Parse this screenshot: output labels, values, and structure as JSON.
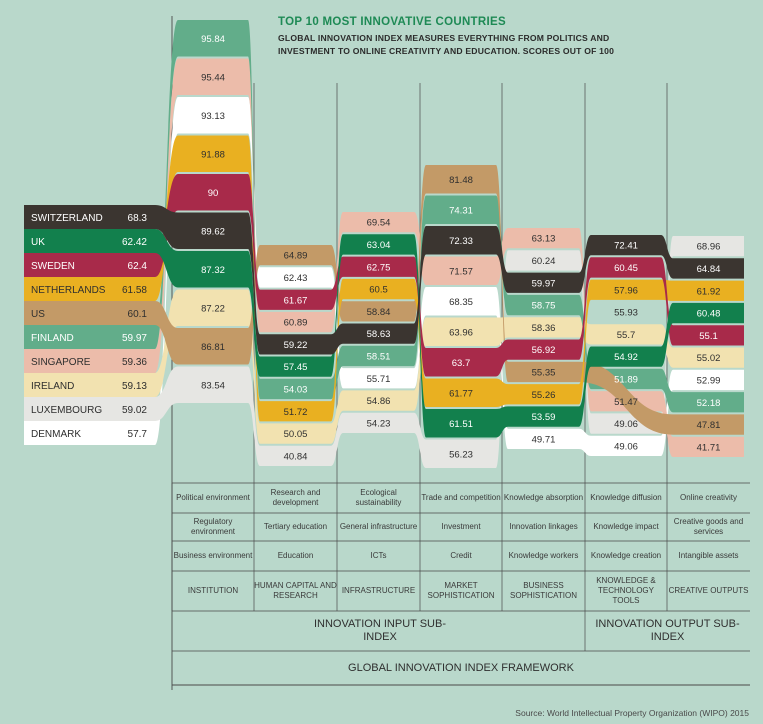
{
  "title": "TOP 10 MOST INNOVATIVE COUNTRIES",
  "subtitle": "GLOBAL INNOVATION INDEX MEASURES EVERYTHING FROM POLITICS AND INVESTMENT TO ONLINE CREATIVITY AND EDUCATION. SCORES OUT OF 100",
  "source": "Source: World Intellectual Property Organization (WIPO) 2015",
  "colors": {
    "Switzerland": "#3b3530",
    "UK": "#12804d",
    "Sweden": "#a82a4a",
    "Netherlands": "#e9b021",
    "US": "#c39a67",
    "Finland": "#62ad8a",
    "Singapore": "#ecbcaa",
    "Ireland": "#f2e2b0",
    "Luxembourg": "#e6e6e3",
    "Denmark": "#ffffff"
  },
  "chart_data": {
    "type": "bump",
    "countries": [
      "Switzerland",
      "UK",
      "Sweden",
      "Netherlands",
      "US",
      "Finland",
      "Singapore",
      "Ireland",
      "Luxembourg",
      "Denmark"
    ],
    "overall_labels": [
      "SWITZERLAND",
      "UK",
      "SWEDEN",
      "NETHERLANDS",
      "US",
      "FINLAND",
      "SINGAPORE",
      "IRELAND",
      "LUXEMBOURG",
      "DENMARK"
    ],
    "overall": {
      "values": [
        "68.3",
        "62.42",
        "62.4",
        "61.58",
        "60.1",
        "59.97",
        "59.36",
        "59.13",
        "59.02",
        "57.7"
      ]
    },
    "pillars": [
      "INSTITUTION",
      "HUMAN CAPITAL AND RESEARCH",
      "INFRASTRUCTURE",
      "MARKET SOPHISTICATION",
      "BUSINESS SOPHISTICATION",
      "KNOWLEDGE & TECHNOLOGY TOOLS",
      "CREATIVE OUTPUTS"
    ],
    "columns": [
      {
        "order": [
          "Finland",
          "Singapore",
          "Denmark",
          "Netherlands",
          "Sweden",
          "Switzerland",
          "UK",
          "Ireland",
          "US",
          "Luxembourg"
        ],
        "values": [
          "95.84",
          "95.44",
          "93.13",
          "91.88",
          "90",
          "89.62",
          "87.32",
          "87.22",
          "86.81",
          "83.54"
        ]
      },
      {
        "order": [
          "US",
          "Denmark",
          "Sweden",
          "Singapore",
          "Switzerland",
          "UK",
          "Finland",
          "Netherlands",
          "Ireland",
          "Luxembourg"
        ],
        "values": [
          "64.89",
          "62.43",
          "61.67",
          "60.89",
          "59.22",
          "57.45",
          "54.03",
          "51.72",
          "50.05",
          "40.84"
        ]
      },
      {
        "order": [
          "Singapore",
          "UK",
          "Sweden",
          "Netherlands",
          "US",
          "Switzerland",
          "Finland",
          "Denmark",
          "Ireland",
          "Luxembourg"
        ],
        "values": [
          "69.54",
          "63.04",
          "62.75",
          "60.5",
          "58.84",
          "58.63",
          "58.51",
          "55.71",
          "54.86",
          "54.23"
        ]
      },
      {
        "order": [
          "US",
          "Finland",
          "Switzerland",
          "Singapore",
          "Denmark",
          "Ireland",
          "Sweden",
          "Netherlands",
          "UK",
          "Luxembourg"
        ],
        "values": [
          "81.48",
          "74.31",
          "72.33",
          "71.57",
          "68.35",
          "63.96",
          "63.7",
          "61.77",
          "61.51",
          "56.23"
        ]
      },
      {
        "order": [
          "Singapore",
          "Luxembourg",
          "Switzerland",
          "Finland",
          "Ireland",
          "Sweden",
          "US",
          "Netherlands",
          "UK",
          "Denmark"
        ],
        "values": [
          "63.13",
          "60.24",
          "59.97",
          "58.75",
          "58.36",
          "56.92",
          "55.35",
          "55.26",
          "53.59",
          "49.71"
        ]
      },
      {
        "order": [
          "Switzerland",
          "Sweden",
          "Netherlands",
          "Netherlands",
          "Ireland",
          "UK",
          "Finland",
          "Singapore",
          "Luxembourg",
          "Denmark"
        ],
        "values": [
          "72.41",
          "60.45",
          "57.96",
          "55.93",
          "55.7",
          "54.92",
          "51.89",
          "51.47",
          "49.06",
          "49.06"
        ]
      },
      {
        "order": [
          "Luxembourg",
          "Switzerland",
          "Netherlands",
          "UK",
          "Sweden",
          "Ireland",
          "Denmark",
          "Finland",
          "US",
          "Singapore"
        ],
        "values": [
          "68.96",
          "64.84",
          "61.92",
          "60.48",
          "55.1",
          "55.02",
          "52.99",
          "52.18",
          "47.81",
          "41.71"
        ]
      }
    ]
  },
  "framework": {
    "rows": [
      [
        "Political environment",
        "Research and development",
        "Ecological sustainability",
        "Trade and competition",
        "Knowledge absorption",
        "Knowledge diffusion",
        "Online creativity"
      ],
      [
        "Regulatory environment",
        "Tertiary education",
        "General infrastructure",
        "Investment",
        "Innovation linkages",
        "Knowledge impact",
        "Creative goods and services"
      ],
      [
        "Business environment",
        "Education",
        "ICTs",
        "Credit",
        "Knowledge workers",
        "Knowledge creation",
        "Intangible assets"
      ],
      [
        "INSTITUTION",
        "HUMAN CAPITAL AND RESEARCH",
        "INFRASTRUCTURE",
        "MARKET SOPHISTICATION",
        "BUSINESS SOPHISTICATION",
        "KNOWLEDGE & TECHNOLOGY TOOLS",
        "CREATIVE OUTPUTS"
      ]
    ],
    "input_subindex": "INNOVATION INPUT SUB-INDEX",
    "output_subindex": "INNOVATION OUTPUT SUB-INDEX",
    "framework_label": "GLOBAL INNOVATION INDEX FRAMEWORK"
  }
}
